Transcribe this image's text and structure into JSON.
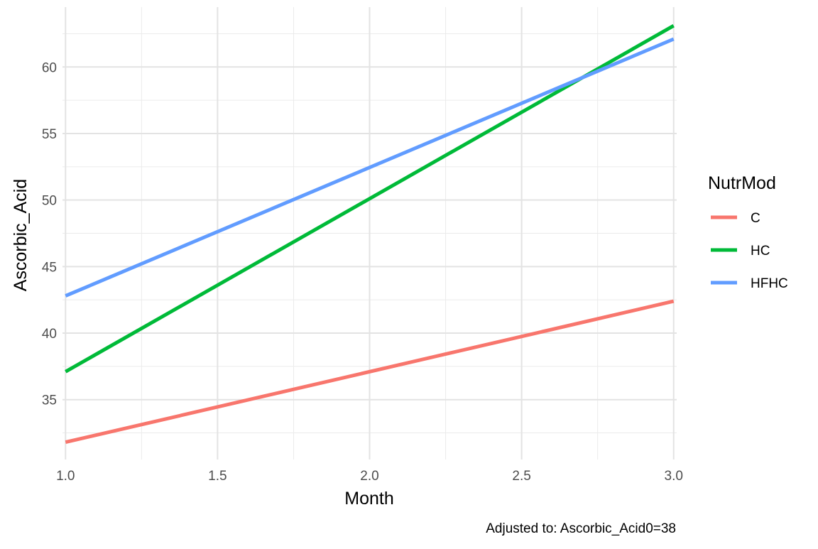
{
  "chart_data": {
    "type": "line",
    "xlabel": "Month",
    "ylabel": "Ascorbic_Acid",
    "caption": "Adjusted to: Ascorbic_Acid0=38",
    "legend_title": "NutrMod",
    "legend_position": "right",
    "grid": true,
    "xlim": [
      0.99,
      3.01
    ],
    "ylim": [
      30.5,
      64.5
    ],
    "x_ticks": [
      1.0,
      1.5,
      2.0,
      2.5,
      3.0
    ],
    "x_tick_labels": [
      "1.0",
      "1.5",
      "2.0",
      "2.5",
      "3.0"
    ],
    "x_minor_ticks": [
      1.25,
      1.75,
      2.25,
      2.75
    ],
    "y_ticks": [
      35,
      40,
      45,
      50,
      55,
      60
    ],
    "y_tick_labels": [
      "35",
      "40",
      "45",
      "50",
      "55",
      "60"
    ],
    "y_minor_ticks": [
      32.5,
      37.5,
      42.5,
      47.5,
      52.5,
      57.5,
      62.5
    ],
    "series": [
      {
        "name": "C",
        "color": "#F8766D",
        "x": [
          1.0,
          3.0
        ],
        "y": [
          31.8,
          42.4
        ]
      },
      {
        "name": "HC",
        "color": "#00BA38",
        "x": [
          1.0,
          3.0
        ],
        "y": [
          37.1,
          63.1
        ]
      },
      {
        "name": "HFHC",
        "color": "#619CFF",
        "x": [
          1.0,
          3.0
        ],
        "y": [
          42.8,
          62.1
        ]
      }
    ]
  }
}
